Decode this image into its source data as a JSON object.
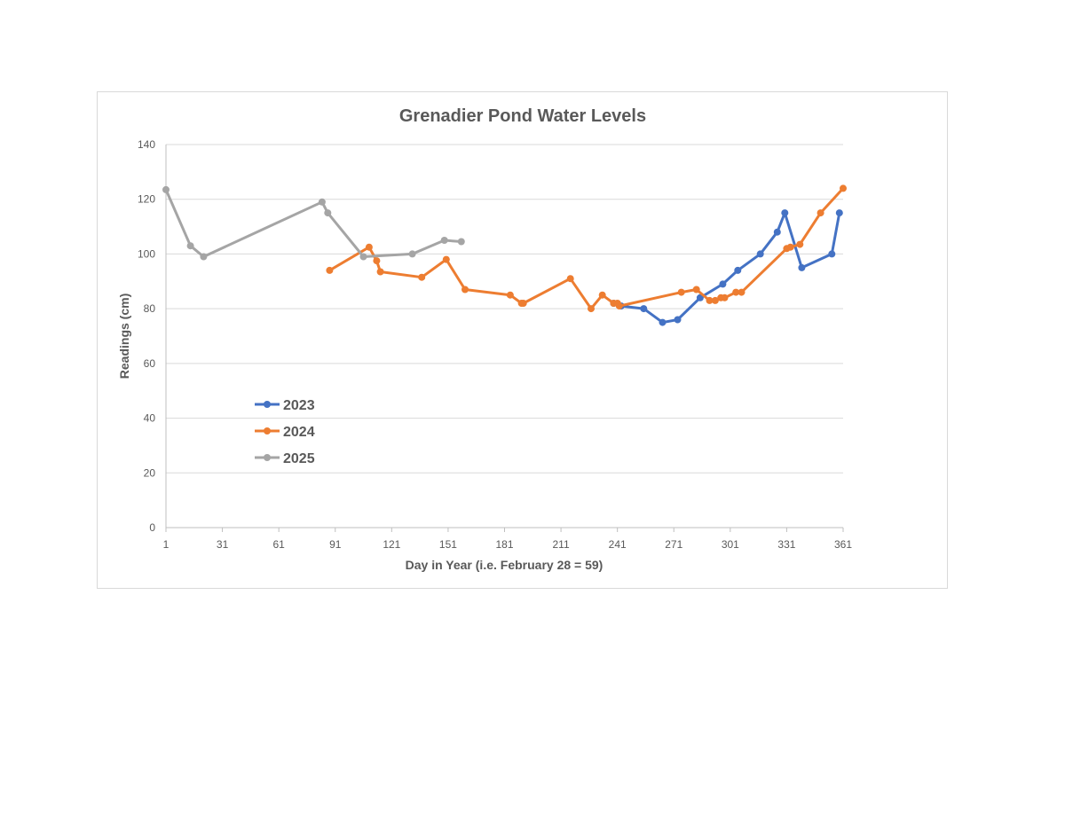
{
  "chart_data": {
    "type": "line",
    "title": "Grenadier Pond Water Levels",
    "xlabel": "Day in Year (i.e. February 28 = 59)",
    "ylabel": "Readings (cm)",
    "xlim": [
      1,
      361
    ],
    "ylim": [
      0,
      140
    ],
    "xticks": [
      "1",
      "31",
      "61",
      "91",
      "121",
      "151",
      "181",
      "211",
      "241",
      "271",
      "301",
      "331",
      "361"
    ],
    "yticks": [
      "0",
      "20",
      "40",
      "60",
      "80",
      "100",
      "120",
      "140"
    ],
    "grid": "horizontal",
    "legend": "left-middle",
    "series": [
      {
        "name": "2023",
        "color": "#4472c4",
        "points": [
          [
            239,
            82
          ],
          [
            243,
            81
          ],
          [
            255,
            80
          ],
          [
            265,
            75
          ],
          [
            273,
            76
          ],
          [
            285,
            84
          ],
          [
            297,
            89
          ],
          [
            305,
            94
          ],
          [
            317,
            100
          ],
          [
            326,
            108
          ],
          [
            330,
            115
          ],
          [
            339,
            95
          ],
          [
            355,
            100
          ],
          [
            359,
            115
          ]
        ]
      },
      {
        "name": "2024",
        "color": "#ed7d31",
        "points": [
          [
            88,
            94
          ],
          [
            109,
            102.5
          ],
          [
            113,
            97.5
          ],
          [
            115,
            93.5
          ],
          [
            137,
            91.5
          ],
          [
            150,
            98
          ],
          [
            160,
            87
          ],
          [
            184,
            85
          ],
          [
            190,
            82
          ],
          [
            191,
            82
          ],
          [
            216,
            91
          ],
          [
            227,
            80
          ],
          [
            233,
            85
          ],
          [
            239,
            82
          ],
          [
            241,
            82
          ],
          [
            242,
            81
          ],
          [
            275,
            86
          ],
          [
            283,
            87
          ],
          [
            290,
            83
          ],
          [
            293,
            83
          ],
          [
            296,
            84
          ],
          [
            298,
            84
          ],
          [
            304,
            86
          ],
          [
            307,
            86
          ],
          [
            331,
            102
          ],
          [
            333,
            102.5
          ],
          [
            338,
            103.5
          ],
          [
            349,
            115
          ],
          [
            361,
            124
          ]
        ]
      },
      {
        "name": "2025",
        "color": "#a5a5a5",
        "points": [
          [
            1,
            123.5
          ],
          [
            14,
            103
          ],
          [
            21,
            99
          ],
          [
            84,
            119
          ],
          [
            87,
            115
          ],
          [
            106,
            99
          ],
          [
            132,
            100
          ],
          [
            149,
            105
          ],
          [
            158,
            104.5
          ]
        ]
      }
    ]
  }
}
